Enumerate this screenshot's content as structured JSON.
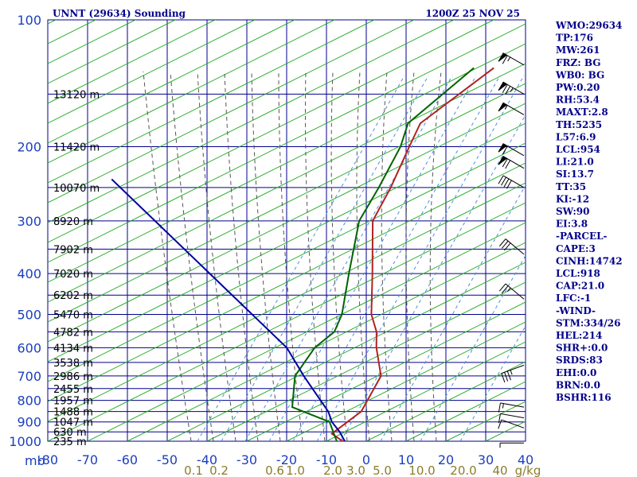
{
  "title": {
    "station": "UNNT (29634) Sounding",
    "time": "1200Z 25 NOV 25"
  },
  "indices": [
    "WMO:29634",
    "TP:176",
    "MW:261",
    "FRZ: BG",
    "WB0: BG",
    "PW:0.20",
    "RH:53.4",
    "MAXT:2.8",
    "TH:5235",
    "L57:6.9",
    "LCL:954",
    "LI:21.0",
    "SI:13.7",
    "TT:35",
    "KI:-12",
    "SW:90",
    "EI:3.8",
    "-PARCEL-",
    "CAPE:3",
    "CINH:14742",
    "LCL:918",
    "CAP:21.0",
    "LFC:-1",
    "-WIND-",
    "STM:334/26",
    "HEL:214",
    "SHR+:0.0",
    "SRDS:83",
    "EHI:0.0",
    "BRN:0.0",
    "BSHR:116"
  ],
  "colors": {
    "grid": "#00008b",
    "axis_text": "#1c3fbf",
    "temperature": "#b22222",
    "dewpoint": "#006400",
    "parcel": "#0000a0",
    "dry_adiabat": "#22aa22",
    "moist_adiabat": "#555555",
    "mixing_ratio": "#4a90d9",
    "mixing_label": "#8b7d2a",
    "wind": "#000000"
  },
  "chart_data": {
    "type": "line",
    "subtype": "skew-T log-P sounding",
    "y_axis": {
      "label": "mb",
      "scale": "log",
      "ticks": [
        100,
        200,
        300,
        400,
        500,
        600,
        700,
        800,
        900,
        1000
      ],
      "range": [
        1000,
        100
      ]
    },
    "x_axis": {
      "ticks": [
        -80,
        -70,
        -60,
        -50,
        -40,
        -30,
        -20,
        -10,
        0,
        10,
        20,
        30,
        40
      ],
      "tick_labels": [
        "-80",
        "-70",
        "-60",
        "-50",
        "-40",
        "-30",
        "-20",
        "-10",
        "0",
        "10",
        "20",
        "30",
        "40"
      ],
      "range": [
        -80,
        40
      ]
    },
    "height_labels": [
      {
        "p": 150,
        "label": "13120 m"
      },
      {
        "p": 200,
        "label": "11420 m"
      },
      {
        "p": 250,
        "label": "10070 m"
      },
      {
        "p": 300,
        "label": "8920 m"
      },
      {
        "p": 350,
        "label": "7902 m"
      },
      {
        "p": 400,
        "label": "7020 m"
      },
      {
        "p": 450,
        "label": "6202 m"
      },
      {
        "p": 500,
        "label": "5470 m"
      },
      {
        "p": 550,
        "label": "4782 m"
      },
      {
        "p": 600,
        "label": "4134 m"
      },
      {
        "p": 650,
        "label": "3538 m"
      },
      {
        "p": 700,
        "label": "2986 m"
      },
      {
        "p": 750,
        "label": "2455 m"
      },
      {
        "p": 800,
        "label": "1957 m"
      },
      {
        "p": 850,
        "label": "1488 m"
      },
      {
        "p": 900,
        "label": "1047 m"
      },
      {
        "p": 950,
        "label": "630 m"
      },
      {
        "p": 1000,
        "label": "235 m"
      }
    ],
    "mixing_ratio_labels": [
      "0.1",
      "0.2",
      "0.6",
      "1.0",
      "2.0",
      "3.0",
      "5.0",
      "10.0",
      "20.0",
      "40",
      "g/kg"
    ],
    "series": [
      {
        "id": "temperature",
        "points": [
          {
            "p": 1010,
            "t": -4.8
          },
          {
            "p": 960,
            "t": -10.5
          },
          {
            "p": 850,
            "t": -8.6
          },
          {
            "p": 700,
            "t": -12.4
          },
          {
            "p": 600,
            "t": -20.5
          },
          {
            "p": 550,
            "t": -24.4
          },
          {
            "p": 500,
            "t": -30
          },
          {
            "p": 400,
            "t": -39.8
          },
          {
            "p": 300,
            "t": -52.7
          },
          {
            "p": 250,
            "t": -56.4
          },
          {
            "p": 200,
            "t": -61.8
          },
          {
            "p": 176,
            "t": -64.8
          },
          {
            "p": 130,
            "t": -60
          }
        ]
      },
      {
        "id": "dewpoint",
        "points": [
          {
            "p": 1010,
            "t": -6.8
          },
          {
            "p": 900,
            "t": -14
          },
          {
            "p": 830,
            "t": -27
          },
          {
            "p": 700,
            "t": -34
          },
          {
            "p": 600,
            "t": -36
          },
          {
            "p": 550,
            "t": -35
          },
          {
            "p": 500,
            "t": -37.4
          },
          {
            "p": 400,
            "t": -45.7
          },
          {
            "p": 300,
            "t": -56.1
          },
          {
            "p": 250,
            "t": -59.4
          },
          {
            "p": 200,
            "t": -64
          },
          {
            "p": 176,
            "t": -67.9
          },
          {
            "p": 130,
            "t": -65
          }
        ]
      },
      {
        "id": "parcel",
        "points": [
          {
            "p": 1000,
            "t": -5.4
          },
          {
            "p": 950,
            "t": -9
          },
          {
            "p": 900,
            "t": -13.4
          },
          {
            "p": 850,
            "t": -16.9
          },
          {
            "p": 700,
            "t": -31.8
          },
          {
            "p": 600,
            "t": -43
          }
        ]
      }
    ],
    "wind_barbs": [
      {
        "p": 128,
        "dir": 300,
        "speed": 65
      },
      {
        "p": 150,
        "dir": 300,
        "speed": 75
      },
      {
        "p": 168,
        "dir": 300,
        "speed": 55
      },
      {
        "p": 210,
        "dir": 300,
        "speed": 60
      },
      {
        "p": 225,
        "dir": 300,
        "speed": 70
      },
      {
        "p": 250,
        "dir": 300,
        "speed": 40
      },
      {
        "p": 360,
        "dir": 310,
        "speed": 30
      },
      {
        "p": 460,
        "dir": 310,
        "speed": 25
      },
      {
        "p": 660,
        "dir": 250,
        "speed": 35
      },
      {
        "p": 830,
        "dir": 280,
        "speed": 15
      },
      {
        "p": 880,
        "dir": 280,
        "speed": 10
      },
      {
        "p": 930,
        "dir": 290,
        "speed": 10
      },
      {
        "p": 1010,
        "dir": 270,
        "speed": 5
      }
    ],
    "grid": true,
    "legend": "none"
  }
}
